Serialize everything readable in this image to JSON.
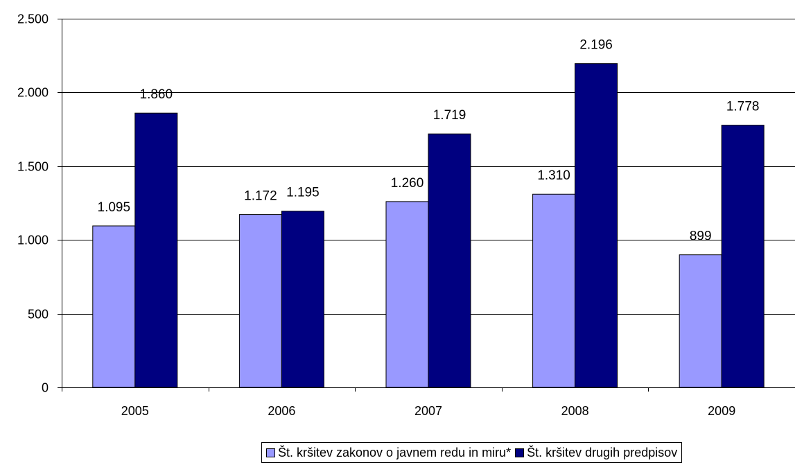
{
  "chart_data": {
    "type": "bar",
    "title": "",
    "xlabel": "",
    "ylabel": "",
    "categories": [
      "2005",
      "2006",
      "2007",
      "2008",
      "2009"
    ],
    "ylim": [
      0,
      2500
    ],
    "yticks": [
      0,
      500,
      1000,
      1500,
      2000,
      2500
    ],
    "ytick_labels": [
      "0",
      "500",
      "1.000",
      "1.500",
      "2.000",
      "2.500"
    ],
    "grid": true,
    "legend_position": "bottom",
    "series": [
      {
        "name": "Št. kršitev zakonov o javnem redu in miru*",
        "values": [
          1095,
          1172,
          1260,
          1310,
          899
        ],
        "labels": [
          "1.095",
          "1.172",
          "1.260",
          "1.310",
          "899"
        ],
        "color": "#9999ff"
      },
      {
        "name": "Št. kršitev drugih predpisov",
        "values": [
          1860,
          1195,
          1719,
          2196,
          1778
        ],
        "labels": [
          "1.860",
          "1.195",
          "1.719",
          "2.196",
          "1.778"
        ],
        "color": "#000080"
      }
    ]
  }
}
